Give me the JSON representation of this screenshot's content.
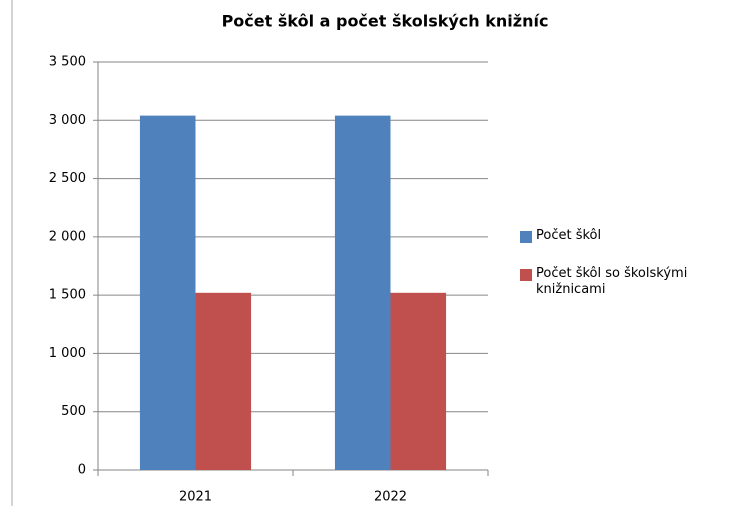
{
  "chart_data": {
    "type": "bar",
    "title": "Počet škôl a počet školských knižníc",
    "categories": [
      "2021",
      "2022"
    ],
    "series": [
      {
        "name": "Počet škôl",
        "color": "#4f81bd",
        "values": [
          3040,
          3040
        ]
      },
      {
        "name": "Počet škôl so školskými knižnicami",
        "color": "#c0504d",
        "values": [
          1520,
          1520
        ]
      }
    ],
    "ylim": [
      0,
      3500
    ],
    "yticks": [
      0,
      500,
      {
        "value": 1000,
        "label": "1 000"
      },
      {
        "value": 1500,
        "label": "1 500"
      },
      {
        "value": 2000,
        "label": "2 000"
      },
      {
        "value": 2500,
        "label": "2 500"
      },
      {
        "value": 3000,
        "label": "3 000"
      },
      {
        "value": 3500,
        "label": "3 500"
      }
    ],
    "grid": true,
    "legend": "right"
  }
}
